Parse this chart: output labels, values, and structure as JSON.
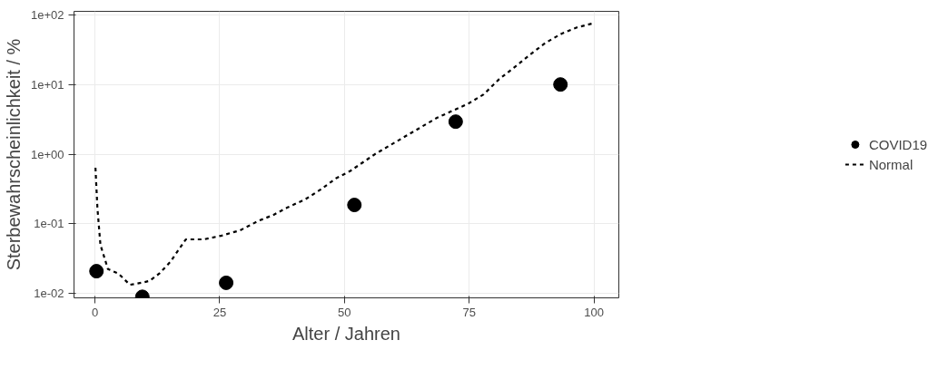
{
  "chart_data": {
    "type": "line",
    "xlabel": "Alter / Jahren",
    "ylabel": "Sterbewahrscheinlichkeit / %",
    "log": "y",
    "xlim": [
      -4.2,
      105
    ],
    "ylim": [
      0.0087,
      112
    ],
    "xticks": [
      0,
      25,
      50,
      75,
      100
    ],
    "yticks": [
      {
        "value": 0.01,
        "label": "1e-02"
      },
      {
        "value": 0.1,
        "label": "1e-01"
      },
      {
        "value": 1,
        "label": "1e+00"
      },
      {
        "value": 10,
        "label": "1e+01"
      },
      {
        "value": 100,
        "label": "1e+02"
      }
    ],
    "grid": true,
    "legend": "right",
    "series": [
      {
        "name": "COVID19",
        "type": "scatter",
        "marker": "circle",
        "color": "#000000",
        "x": [
          0.3,
          9.5,
          26.3,
          52,
          72.3,
          93.3
        ],
        "values": [
          0.021,
          0.009,
          0.0143,
          0.187,
          2.93,
          10
        ]
      },
      {
        "name": "Normal",
        "type": "line",
        "line_style": "dashed",
        "color": "#000000",
        "x": [
          0.1,
          0.5,
          1.1,
          2.6,
          4.7,
          7,
          9.3,
          10.9,
          12.9,
          15.1,
          18.2,
          21.8,
          25.4,
          29.1,
          32.7,
          35.8,
          38.5,
          42.1,
          45.2,
          48.3,
          51.1,
          56.1,
          62.3,
          68.5,
          74.8,
          77.9,
          81,
          84.1,
          87.2,
          90.3,
          93.5,
          96.6,
          100
        ],
        "values": [
          0.64,
          0.166,
          0.05,
          0.0225,
          0.0194,
          0.0134,
          0.0143,
          0.0152,
          0.0194,
          0.0285,
          0.06,
          0.06,
          0.068,
          0.081,
          0.11,
          0.135,
          0.171,
          0.224,
          0.31,
          0.45,
          0.57,
          1.0,
          1.82,
          3.31,
          5.3,
          7.2,
          11.9,
          17.7,
          26.8,
          39.6,
          53.4,
          65.8,
          76
        ]
      }
    ]
  }
}
